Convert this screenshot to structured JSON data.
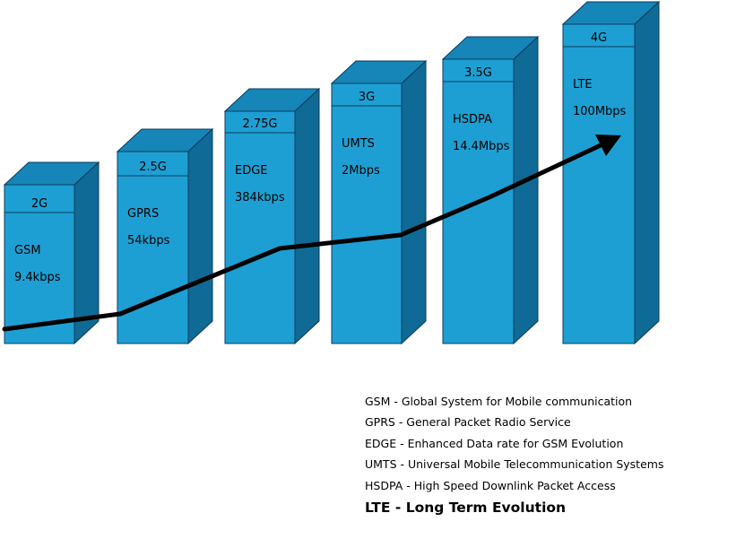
{
  "generations": [
    {
      "gen": "2G",
      "tech": "GSM",
      "speed": "9.4kbps"
    },
    {
      "gen": "2.5G",
      "tech": "GPRS",
      "speed": "54kbps"
    },
    {
      "gen": "2.75G",
      "tech": "EDGE",
      "speed": "384kbps"
    },
    {
      "gen": "3G",
      "tech": "UMTS",
      "speed": "2Mbps"
    },
    {
      "gen": "3.5G",
      "tech": "HSDPA",
      "speed": "14.4Mbps"
    },
    {
      "gen": "4G",
      "tech": "LTE",
      "speed": "100Mbps"
    }
  ],
  "legend": [
    "GSM - Global System for Mobile communication",
    "GPRS - General Packet Radio Service",
    "EDGE - Enhanced Data rate for GSM Evolution",
    "UMTS - Universal Mobile Telecommunication Systems",
    "HSDPA - High Speed Downlink Packet Access",
    "LTE - Long Term Evolution"
  ],
  "colors": {
    "front": "#1e9fd3",
    "top": "#1685b8",
    "side": "#0f6a95",
    "edge": "#0a3d5c",
    "arrow": "#000000"
  }
}
